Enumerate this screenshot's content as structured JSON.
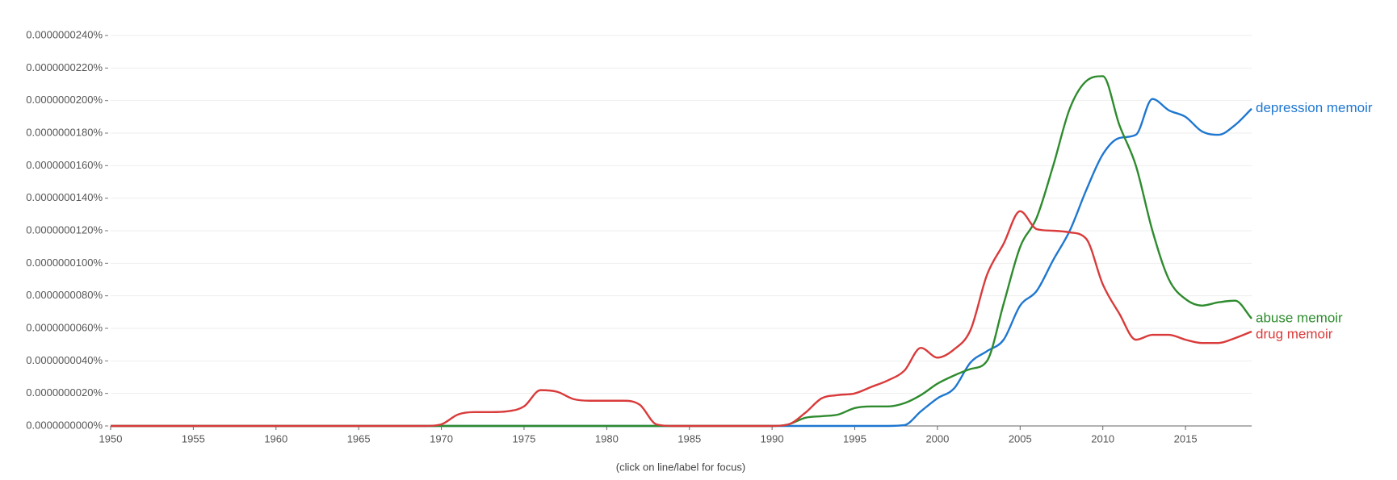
{
  "chart_data": {
    "type": "line",
    "footnote": "(click on line/label for focus)",
    "x": [
      1950,
      1951,
      1952,
      1953,
      1954,
      1955,
      1956,
      1957,
      1958,
      1959,
      1960,
      1961,
      1962,
      1963,
      1964,
      1965,
      1966,
      1967,
      1968,
      1969,
      1970,
      1971,
      1972,
      1973,
      1974,
      1975,
      1976,
      1977,
      1978,
      1979,
      1980,
      1981,
      1982,
      1983,
      1984,
      1985,
      1986,
      1987,
      1988,
      1989,
      1990,
      1991,
      1992,
      1993,
      1994,
      1995,
      1996,
      1997,
      1998,
      1999,
      2000,
      2001,
      2002,
      2003,
      2004,
      2005,
      2006,
      2007,
      2008,
      2009,
      2010,
      2011,
      2012,
      2013,
      2014,
      2015,
      2016,
      2017,
      2018,
      2019
    ],
    "xlim": [
      1950,
      2019
    ],
    "xticks": [
      1950,
      1955,
      1960,
      1965,
      1970,
      1975,
      1980,
      1985,
      1990,
      1995,
      2000,
      2005,
      2010,
      2015
    ],
    "ylim": [
      0,
      2.4e-08
    ],
    "yticks": [
      {
        "value": 0,
        "label": "0.0000000000%"
      },
      {
        "value": 2e-09,
        "label": "0.0000000020%"
      },
      {
        "value": 4e-09,
        "label": "0.0000000040%"
      },
      {
        "value": 6e-09,
        "label": "0.0000000060%"
      },
      {
        "value": 8e-09,
        "label": "0.0000000080%"
      },
      {
        "value": 1e-08,
        "label": "0.0000000100%"
      },
      {
        "value": 1.2e-08,
        "label": "0.0000000120%"
      },
      {
        "value": 1.4e-08,
        "label": "0.0000000140%"
      },
      {
        "value": 1.6e-08,
        "label": "0.0000000160%"
      },
      {
        "value": 1.8e-08,
        "label": "0.0000000180%"
      },
      {
        "value": 2e-08,
        "label": "0.0000000200%"
      },
      {
        "value": 2.2e-08,
        "label": "0.0000000220%"
      },
      {
        "value": 2.4e-08,
        "label": "0.0000000240%"
      }
    ],
    "grid": true,
    "series": [
      {
        "name": "depression memoir",
        "color": "#1f77d0",
        "values": [
          0,
          0,
          0,
          0,
          0,
          0,
          0,
          0,
          0,
          0,
          0,
          0,
          0,
          0,
          0,
          0,
          0,
          0,
          0,
          0,
          0,
          0,
          0,
          0,
          0,
          0,
          0,
          0,
          0,
          0,
          0,
          0,
          0,
          0,
          0,
          0,
          0,
          0,
          0,
          0,
          0,
          0,
          0,
          0,
          0,
          0,
          0,
          0,
          5e-11,
          9e-10,
          1.7e-09,
          2.3e-09,
          3.9e-09,
          4.6e-09,
          5.3e-09,
          7.4e-09,
          8.3e-09,
          1.02e-08,
          1.2e-08,
          1.45e-08,
          1.67e-08,
          1.77e-08,
          1.79e-08,
          2.01e-08,
          1.94e-08,
          1.9e-08,
          1.81e-08,
          1.79e-08,
          1.85e-08,
          1.95e-08
        ]
      },
      {
        "name": "abuse memoir",
        "color": "#2e8b2e",
        "values": [
          0,
          0,
          0,
          0,
          0,
          0,
          0,
          0,
          0,
          0,
          0,
          0,
          0,
          0,
          0,
          0,
          0,
          0,
          0,
          0,
          0,
          0,
          0,
          0,
          0,
          0,
          0,
          0,
          0,
          0,
          0,
          0,
          0,
          0,
          0,
          0,
          0,
          0,
          0,
          0,
          0,
          1e-10,
          5e-10,
          6e-10,
          7e-10,
          1.1e-09,
          1.2e-09,
          1.2e-09,
          1.4e-09,
          1.9e-09,
          2.6e-09,
          3.1e-09,
          3.5e-09,
          4e-09,
          7.5e-09,
          1.1e-08,
          1.28e-08,
          1.6e-08,
          1.95e-08,
          2.12e-08,
          2.15e-08,
          1.85e-08,
          1.6e-08,
          1.2e-08,
          9e-09,
          7.8e-09,
          7.4e-09,
          7.6e-09,
          7.7e-09,
          6.6e-09
        ]
      },
      {
        "name": "drug memoir",
        "color": "#d93a3a",
        "values": [
          0,
          0,
          0,
          0,
          0,
          0,
          0,
          0,
          0,
          0,
          0,
          0,
          0,
          0,
          0,
          0,
          0,
          0,
          0,
          0,
          1e-10,
          7e-10,
          8.5e-10,
          8.5e-10,
          9e-10,
          1.2e-09,
          2.2e-09,
          2.1e-09,
          1.65e-09,
          1.55e-09,
          1.55e-09,
          1.55e-09,
          1.3e-09,
          1e-10,
          0,
          0,
          0,
          0,
          0,
          0,
          0,
          1e-10,
          8e-10,
          1.7e-09,
          1.9e-09,
          2e-09,
          2.4e-09,
          2.8e-09,
          3.4e-09,
          4.8e-09,
          4.2e-09,
          4.7e-09,
          5.9e-09,
          9.3e-09,
          1.12e-08,
          1.32e-08,
          1.21e-08,
          1.2e-08,
          1.19e-08,
          1.15e-08,
          8.7e-09,
          6.9e-09,
          5.3e-09,
          5.6e-09,
          5.6e-09,
          5.3e-09,
          5.1e-09,
          5.1e-09,
          5.4e-09,
          5.8e-09
        ]
      }
    ]
  }
}
